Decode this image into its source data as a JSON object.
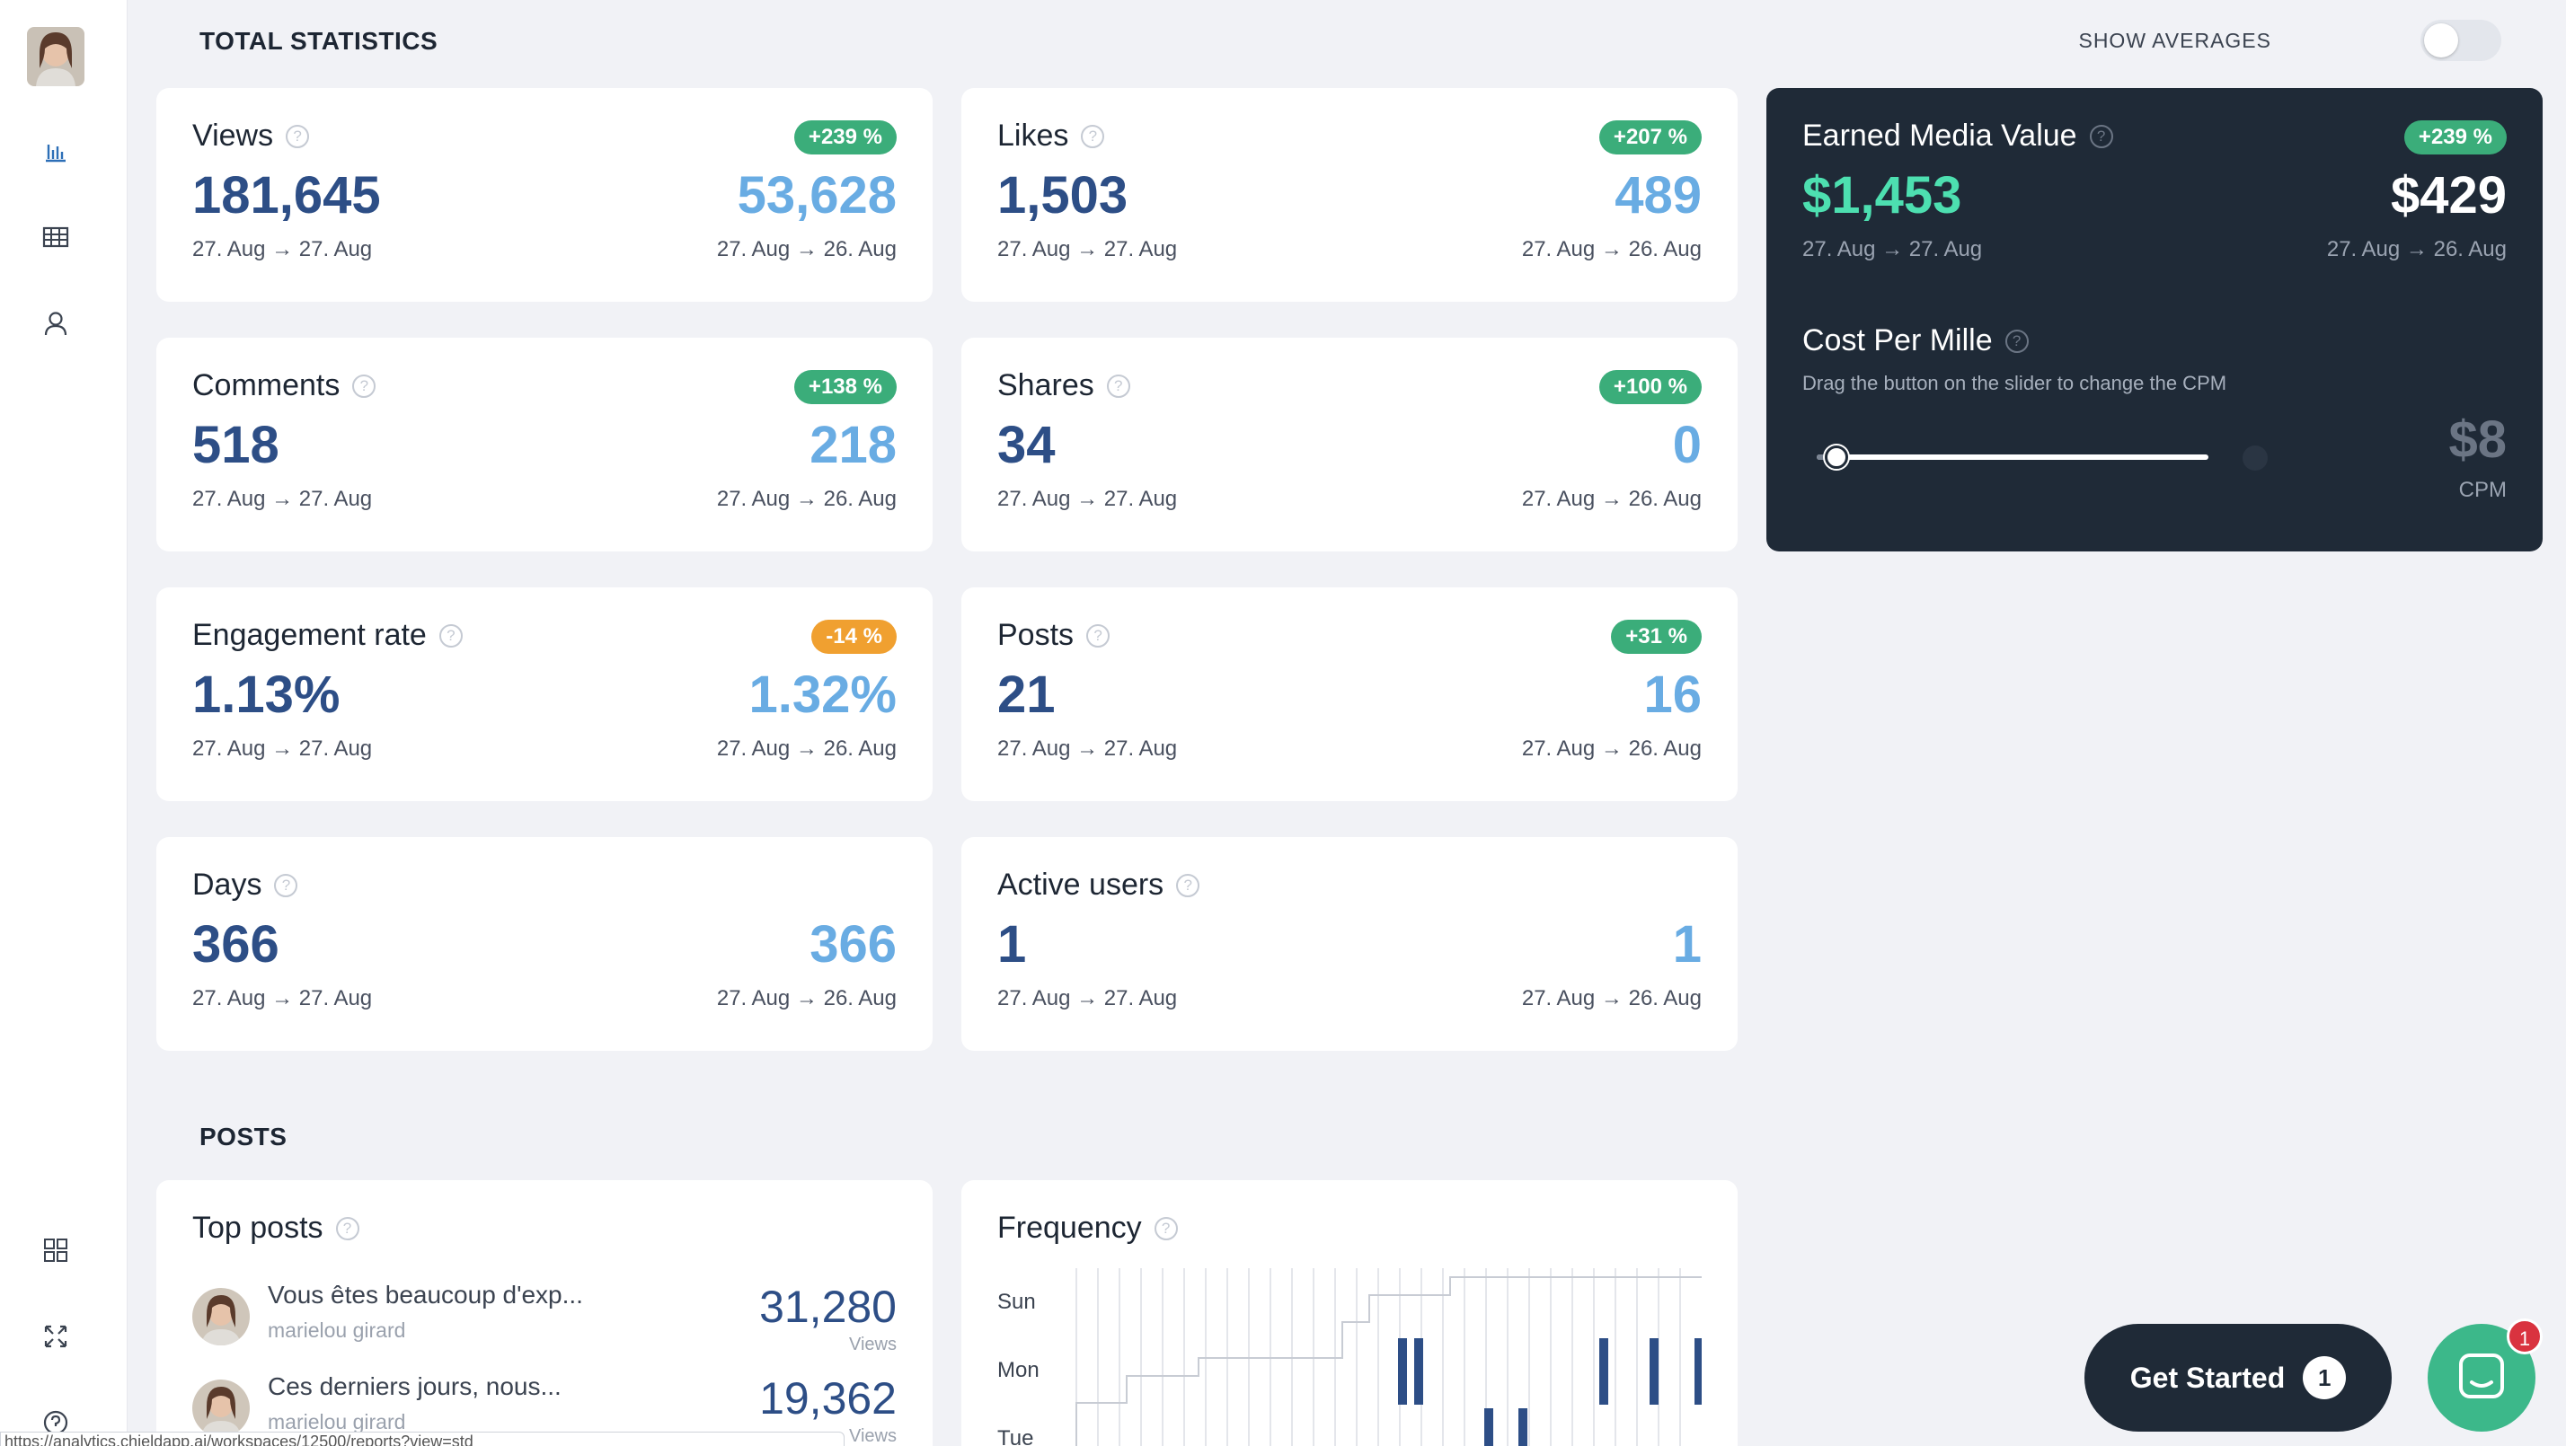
{
  "colors": {
    "accent_blue": "#2d4e86",
    "light_blue": "#69ace3",
    "badge_green": "#3bad7a",
    "badge_orange": "#f0a030",
    "dark_card": "#1f2a37",
    "emv_green": "#4ddfb0"
  },
  "sidebar": {
    "items": [
      {
        "icon": "bar-chart-icon"
      },
      {
        "icon": "table-icon"
      },
      {
        "icon": "user-icon"
      },
      {
        "icon": "grid-icon"
      },
      {
        "icon": "expand-icon"
      },
      {
        "icon": "help-icon"
      }
    ]
  },
  "header": {
    "title": "TOTAL STATISTICS",
    "show_averages": "SHOW AVERAGES"
  },
  "help_glyph": "?",
  "cards": {
    "views": {
      "label": "Views",
      "badge": "+239 %",
      "value": "181,645",
      "prev": "53,628",
      "date": "27. Aug → 27. Aug",
      "prev_date": "27. Aug → 26. Aug"
    },
    "likes": {
      "label": "Likes",
      "badge": "+207 %",
      "value": "1,503",
      "prev": "489",
      "date": "27. Aug → 27. Aug",
      "prev_date": "27. Aug → 26. Aug"
    },
    "comments": {
      "label": "Comments",
      "badge": "+138 %",
      "value": "518",
      "prev": "218",
      "date": "27. Aug → 27. Aug",
      "prev_date": "27. Aug → 26. Aug"
    },
    "shares": {
      "label": "Shares",
      "badge": "+100 %",
      "value": "34",
      "prev": "0",
      "date": "27. Aug → 27. Aug",
      "prev_date": "27. Aug → 26. Aug"
    },
    "engagement": {
      "label": "Engagement rate",
      "badge": "-14 %",
      "value": "1.13%",
      "prev": "1.32%",
      "date": "27. Aug → 27. Aug",
      "prev_date": "27. Aug → 26. Aug"
    },
    "posts": {
      "label": "Posts",
      "badge": "+31 %",
      "value": "21",
      "prev": "16",
      "date": "27. Aug → 27. Aug",
      "prev_date": "27. Aug → 26. Aug"
    },
    "days": {
      "label": "Days",
      "value": "366",
      "prev": "366",
      "date": "27. Aug → 27. Aug",
      "prev_date": "27. Aug → 26. Aug"
    },
    "active_users": {
      "label": "Active users",
      "value": "1",
      "prev": "1",
      "date": "27. Aug → 27. Aug",
      "prev_date": "27. Aug → 26. Aug"
    }
  },
  "emv": {
    "label": "Earned Media Value",
    "badge": "+239 %",
    "value": "$1,453",
    "prev": "$429",
    "date": "27. Aug → 27. Aug",
    "prev_date": "27. Aug → 26. Aug",
    "cpm_title": "Cost Per Mille",
    "cpm_desc": "Drag the button on the slider to change the CPM",
    "cpm_value": "$8",
    "cpm_unit": "CPM",
    "slider_fraction": 0.05
  },
  "posts_section": {
    "title": "POSTS",
    "top_posts": {
      "label": "Top posts",
      "items": [
        {
          "title": "Vous êtes beaucoup d'exp...",
          "author": "marielou girard",
          "value": "31,280",
          "value_label": "Views"
        },
        {
          "title": "Ces derniers jours, nous...",
          "author": "marielou girard",
          "value": "19,362",
          "value_label": "Views"
        }
      ]
    },
    "frequency": {
      "label": "Frequency",
      "days": [
        "Sun",
        "Mon",
        "Tue"
      ]
    }
  },
  "status_url": "https://analytics.chieldapp.ai/workspaces/12500/reports?view=std",
  "get_started": {
    "label": "Get Started",
    "count": "1"
  },
  "chat": {
    "badge": "1"
  }
}
